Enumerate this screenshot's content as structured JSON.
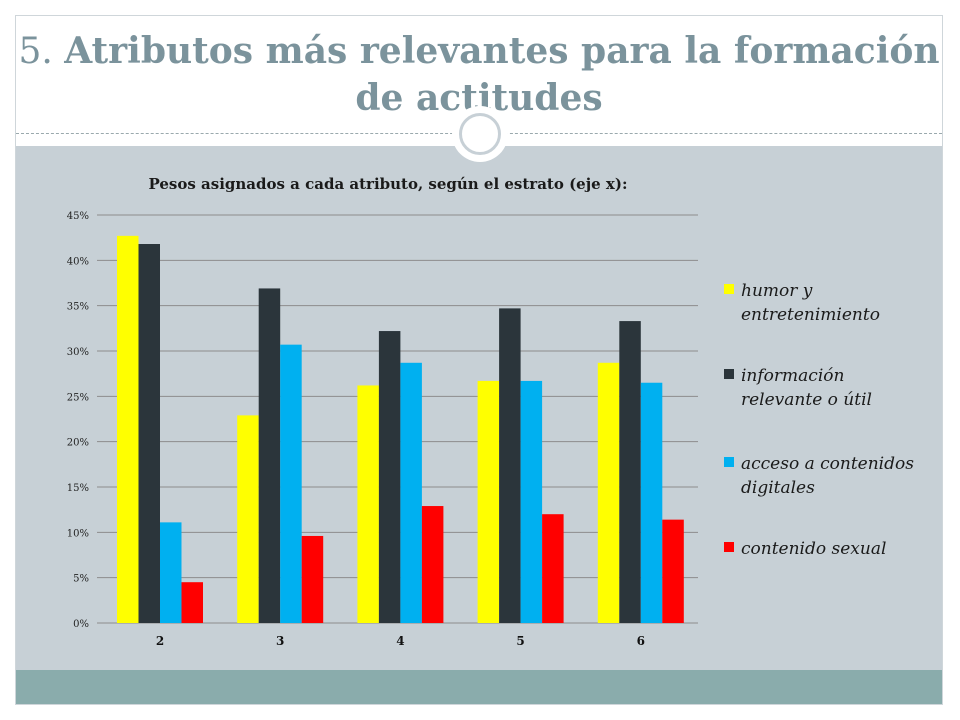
{
  "slide": {
    "title_number": "5.",
    "title_line1": "Atributos más relevantes para la formación",
    "title_line2": "de actitudes"
  },
  "colors": {
    "title": "#7b939c",
    "panel": "#c7d0d6",
    "footer": "#8aacac"
  },
  "chart_data": {
    "type": "bar",
    "title": "Pesos asignados a cada atributo, según el estrato (eje x):",
    "categories": [
      "2",
      "3",
      "4",
      "5",
      "6"
    ],
    "ylim": [
      0,
      45
    ],
    "yticks": [
      "0%",
      "5%",
      "10%",
      "15%",
      "20%",
      "25%",
      "30%",
      "35%",
      "40%",
      "45%"
    ],
    "grid": true,
    "legend_position": "right",
    "series": [
      {
        "name": "humor y entretenimiento",
        "legend_lines": [
          "humor y",
          "entretenimiento"
        ],
        "color": "#ffff00",
        "values": [
          42.7,
          22.9,
          26.2,
          26.7,
          28.7
        ]
      },
      {
        "name": "información relevante o útil",
        "legend_lines": [
          "información",
          "relevante o útil"
        ],
        "color": "#2b353b",
        "values": [
          41.8,
          36.9,
          32.2,
          34.7,
          33.3
        ]
      },
      {
        "name": "acceso a contenidos digitales",
        "legend_lines": [
          "acceso a contenidos",
          "digitales"
        ],
        "color": "#00b0f0",
        "values": [
          11.1,
          30.7,
          28.7,
          26.7,
          26.5
        ]
      },
      {
        "name": "contenido sexual",
        "legend_lines": [
          "contenido sexual"
        ],
        "color": "#ff0000",
        "values": [
          4.5,
          9.6,
          12.9,
          12.0,
          11.4
        ]
      }
    ]
  }
}
